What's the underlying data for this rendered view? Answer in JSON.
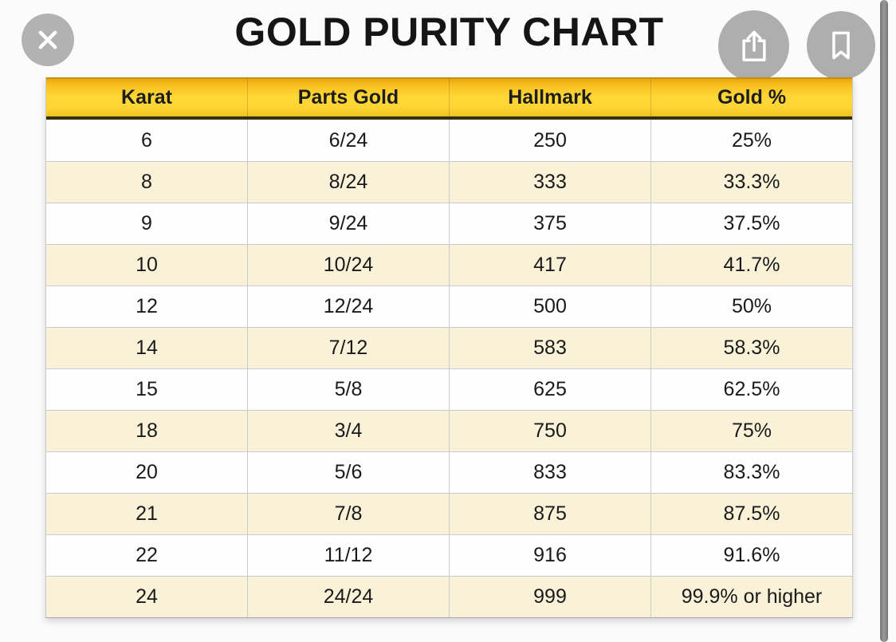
{
  "page": {
    "title": "GOLD PURITY CHART"
  },
  "viewer": {
    "icons": {
      "close": "x-cross",
      "share": "share-arrow-up-from-box",
      "bookmark": "bookmark-ribbon",
      "scrollbar": "vertical-scrollbar"
    },
    "colors": {
      "button_circle": "#aeaeae",
      "button_glyph": "#ffffff",
      "scrollbar": "#8a8a8a"
    }
  },
  "table": {
    "columns": [
      "Karat",
      "Parts Gold",
      "Hallmark",
      "Gold %"
    ],
    "rows": [
      [
        "6",
        "6/24",
        "250",
        "25%"
      ],
      [
        "8",
        "8/24",
        "333",
        "33.3%"
      ],
      [
        "9",
        "9/24",
        "375",
        "37.5%"
      ],
      [
        "10",
        "10/24",
        "417",
        "41.7%"
      ],
      [
        "12",
        "12/24",
        "500",
        "50%"
      ],
      [
        "14",
        "7/12",
        "583",
        "58.3%"
      ],
      [
        "15",
        "5/8",
        "625",
        "62.5%"
      ],
      [
        "18",
        "3/4",
        "750",
        "75%"
      ],
      [
        "20",
        "5/6",
        "833",
        "83.3%"
      ],
      [
        "21",
        "7/8",
        "875",
        "87.5%"
      ],
      [
        "22",
        "11/12",
        "916",
        "91.6%"
      ],
      [
        "24",
        "24/24",
        "999",
        "99.9% or higher"
      ]
    ],
    "colors": {
      "header_gradient_top": "#e9a611",
      "header_gradient_mid": "#ffd838",
      "header_gradient_bottom": "#eec021",
      "header_border_bottom": "#352f0f",
      "row_alt": "#faf2d8",
      "row_white": "#fefefe",
      "grid_line": "#cccccc",
      "text": "#1a1a1a"
    }
  }
}
